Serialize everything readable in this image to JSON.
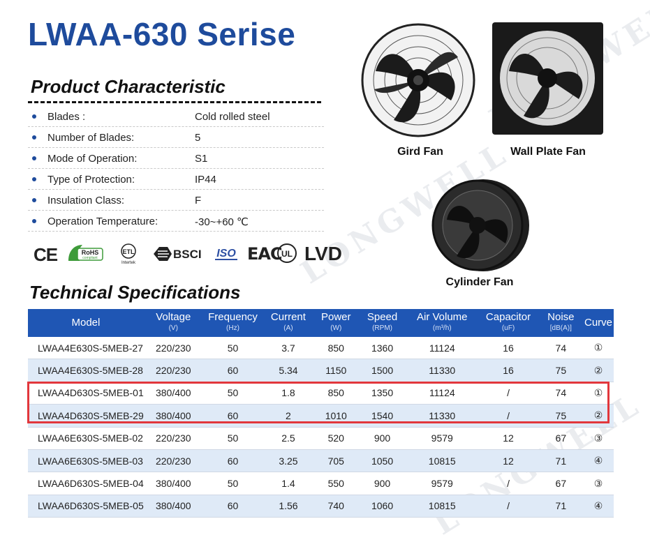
{
  "title": "LWAA-630 Serise",
  "product_characteristic": {
    "heading": "Product Characteristic",
    "items": [
      {
        "label": "Blades :",
        "value": "Cold rolled steel"
      },
      {
        "label": "Number of Blades:",
        "value": "5"
      },
      {
        "label": "Mode of Operation:",
        "value": "S1"
      },
      {
        "label": "Type of Protection:",
        "value": "IP44"
      },
      {
        "label": "Insulation Class:",
        "value": "F"
      },
      {
        "label": "Operation Temperature:",
        "value": "-30~+60 ℃"
      }
    ]
  },
  "certifications": [
    "CE",
    "RoHS compliant",
    "ETL Intertek",
    "BSCI",
    "ISO",
    "EAC",
    "UL",
    "LVD"
  ],
  "fans": [
    {
      "label": "Gird Fan",
      "icon": "grid-fan-image"
    },
    {
      "label": "Wall Plate Fan",
      "icon": "wall-plate-fan-image"
    },
    {
      "label": "Cylinder Fan",
      "icon": "cylinder-fan-image"
    }
  ],
  "watermark": "LONGWELL",
  "technical_specifications": {
    "heading": "Technical Specifications",
    "columns": [
      {
        "name": "Model",
        "unit": ""
      },
      {
        "name": "Voltage",
        "unit": "(V)"
      },
      {
        "name": "Frequency",
        "unit": "(Hz)"
      },
      {
        "name": "Current",
        "unit": "(A)"
      },
      {
        "name": "Power",
        "unit": "(W)"
      },
      {
        "name": "Speed",
        "unit": "(RPM)"
      },
      {
        "name": "Air Volume",
        "unit": "(m³/h)"
      },
      {
        "name": "Capacitor",
        "unit": "(uF)"
      },
      {
        "name": "Noise",
        "unit": "[dB(A)]"
      },
      {
        "name": "Curve",
        "unit": ""
      }
    ],
    "rows": [
      [
        "LWAA4E630S-5MEB-27",
        "220/230",
        "50",
        "3.7",
        "850",
        "1360",
        "11124",
        "16",
        "74",
        "①"
      ],
      [
        "LWAA4E630S-5MEB-28",
        "220/230",
        "60",
        "5.34",
        "1150",
        "1500",
        "11330",
        "16",
        "75",
        "②"
      ],
      [
        "LWAA4D630S-5MEB-01",
        "380/400",
        "50",
        "1.8",
        "850",
        "1350",
        "11124",
        "/",
        "74",
        "①"
      ],
      [
        "LWAA4D630S-5MEB-29",
        "380/400",
        "60",
        "2",
        "1010",
        "1540",
        "11330",
        "/",
        "75",
        "②"
      ],
      [
        "LWAA6E630S-5MEB-02",
        "220/230",
        "50",
        "2.5",
        "520",
        "900",
        "9579",
        "12",
        "67",
        "③"
      ],
      [
        "LWAA6E630S-5MEB-03",
        "220/230",
        "60",
        "3.25",
        "705",
        "1050",
        "10815",
        "12",
        "71",
        "④"
      ],
      [
        "LWAA6D630S-5MEB-04",
        "380/400",
        "50",
        "1.4",
        "550",
        "900",
        "9579",
        "/",
        "67",
        "③"
      ],
      [
        "LWAA6D630S-5MEB-05",
        "380/400",
        "60",
        "1.56",
        "740",
        "1060",
        "10815",
        "/",
        "71",
        "④"
      ]
    ],
    "highlighted_rows": [
      2,
      3
    ],
    "colors": {
      "header_bg": "#1f56b4",
      "alt_row_bg": "#dfeaf7",
      "highlight_border": "#e2373c"
    }
  }
}
